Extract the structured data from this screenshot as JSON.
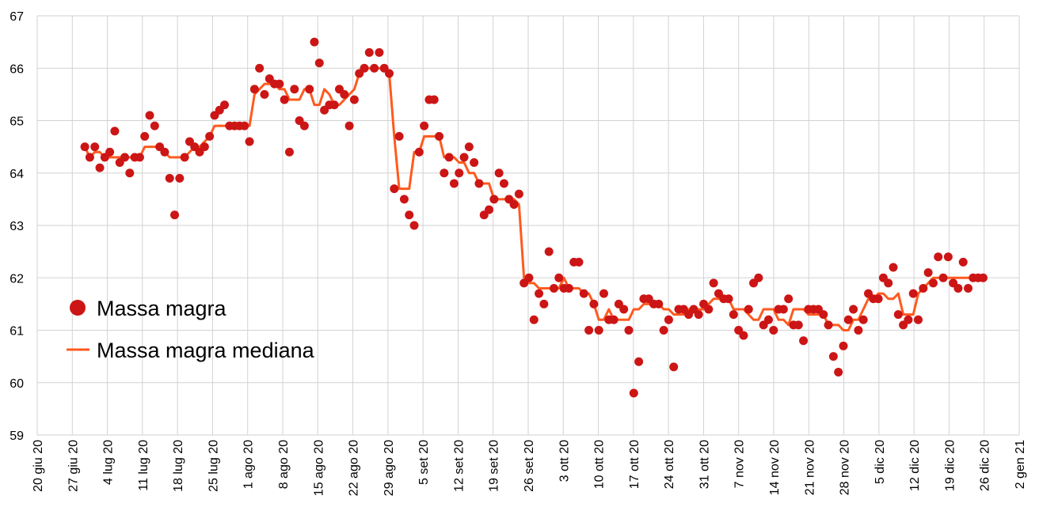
{
  "chart_data": {
    "type": "scatter",
    "title": "",
    "xlabel": "",
    "ylabel": "",
    "ylim": [
      59,
      67
    ],
    "yticks": [
      "59",
      "60",
      "61",
      "62",
      "63",
      "64",
      "65",
      "66",
      "67"
    ],
    "xticks": [
      "20 giu 20",
      "27 giu 20",
      "4 lug 20",
      "11 lug 20",
      "18 lug 20",
      "25 lug 20",
      "1 ago 20",
      "8 ago 20",
      "15 ago 20",
      "22 ago 20",
      "29 ago 20",
      "5 set 20",
      "12 set 20",
      "19 set 20",
      "26 set 20",
      "3 ott 20",
      "10 ott 20",
      "17 ott 20",
      "24 ott 20",
      "31 ott 20",
      "7 nov 20",
      "14 nov 20",
      "21 nov 20",
      "28 nov 20",
      "5 dic 20",
      "12 dic 20",
      "19 dic 20",
      "26 dic 20",
      "2 gen 21"
    ],
    "x_range_days": [
      0,
      196
    ],
    "x_first_day": 9.5,
    "x_last_day": 188.8,
    "grid": true,
    "legend_position": "left",
    "series": [
      {
        "name": "Massa magra",
        "kind": "points",
        "color": "#cc1515",
        "values": [
          64.5,
          64.3,
          64.5,
          64.1,
          64.3,
          64.4,
          64.8,
          64.2,
          64.3,
          64.0,
          64.3,
          64.3,
          64.7,
          65.1,
          64.9,
          64.5,
          64.4,
          63.9,
          63.2,
          63.9,
          64.3,
          64.6,
          64.5,
          64.4,
          64.5,
          64.7,
          65.1,
          65.2,
          65.3,
          64.9,
          64.9,
          64.9,
          64.9,
          64.6,
          65.6,
          66.0,
          65.5,
          65.8,
          65.7,
          65.7,
          65.4,
          64.4,
          65.6,
          65.0,
          64.9,
          65.6,
          66.5,
          66.1,
          65.2,
          65.3,
          65.3,
          65.6,
          65.5,
          64.9,
          65.4,
          65.9,
          66.0,
          66.3,
          66.0,
          66.3,
          66.0,
          65.9,
          63.7,
          64.7,
          63.5,
          63.2,
          63.0,
          64.4,
          64.9,
          65.4,
          65.4,
          64.7,
          64.0,
          64.3,
          63.8,
          64.0,
          64.3,
          64.5,
          64.2,
          63.8,
          63.2,
          63.3,
          63.5,
          64.0,
          63.8,
          63.5,
          63.4,
          63.6,
          61.9,
          62.0,
          61.2,
          61.7,
          61.5,
          62.5,
          61.8,
          62.0,
          61.8,
          61.8,
          62.3,
          62.3,
          61.7,
          61.0,
          61.5,
          61.0,
          61.7,
          61.2,
          61.2,
          61.5,
          61.4,
          61.0,
          59.8,
          60.4,
          61.6,
          61.6,
          61.5,
          61.5,
          61.0,
          61.2,
          60.3,
          61.4,
          61.4,
          61.3,
          61.4,
          61.3,
          61.5,
          61.4,
          61.9,
          61.7,
          61.6,
          61.6,
          61.3,
          61.0,
          60.9,
          61.4,
          61.9,
          62.0,
          61.1,
          61.2,
          61.0,
          61.4,
          61.4,
          61.6,
          61.1,
          61.1,
          60.8,
          61.4,
          61.4,
          61.4,
          61.3,
          61.1,
          60.5,
          60.2,
          60.7,
          61.2,
          61.4,
          61.0,
          61.2,
          61.7,
          61.6,
          61.6,
          62.0,
          61.9,
          62.2,
          61.3,
          61.1,
          61.2,
          61.7,
          61.2,
          61.8,
          62.1,
          61.9,
          62.4,
          62.0,
          62.4,
          61.9,
          61.8,
          62.3,
          61.8,
          62.0,
          62.0,
          62.0
        ]
      },
      {
        "name": "Massa magra mediana",
        "kind": "line",
        "color": "#ff5a1f",
        "rolling_median_window": 7
      }
    ]
  }
}
